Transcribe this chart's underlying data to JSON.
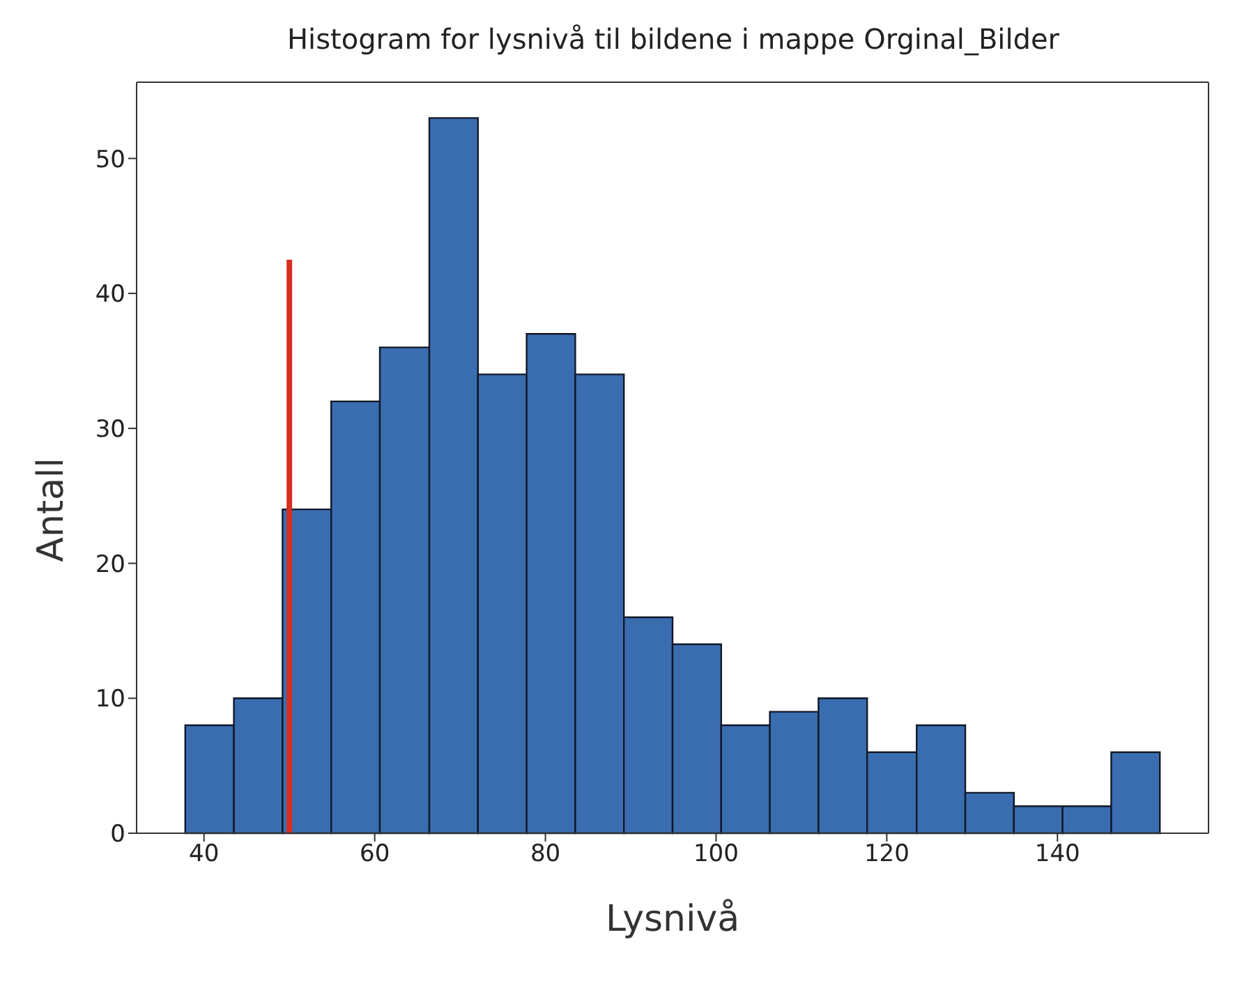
{
  "chart_data": {
    "type": "histogram",
    "title": "Histogram for lysnivå til bildene i mappe Orginal_Bilder",
    "xlabel": "Lysnivå",
    "ylabel": "Antall",
    "bins": [
      37.8,
      43.5,
      49.2,
      54.9,
      60.6,
      66.4,
      72.1,
      77.8,
      83.5,
      89.2,
      94.9,
      100.6,
      106.3,
      112.0,
      117.7,
      123.5,
      129.2,
      134.9,
      140.6,
      146.3,
      152.0
    ],
    "series": [
      {
        "color": "#3a6db0",
        "values": [
          8,
          10,
          24,
          32,
          36,
          53,
          34,
          37,
          34,
          16,
          14,
          8,
          9,
          10,
          6,
          8,
          3,
          2,
          2,
          6
        ]
      },
      {
        "type": "line",
        "color": "#d62f1f",
        "x": [
          50,
          50
        ],
        "values": [
          0,
          42.5
        ]
      }
    ],
    "xlim": [
      32.1,
      157.7
    ],
    "xticks": [
      40,
      60,
      80,
      100,
      120,
      140
    ],
    "ylim": [
      0,
      55.65
    ],
    "yticks": [
      0,
      10,
      20,
      30,
      40,
      50
    ],
    "grid": false,
    "legend": false
  }
}
